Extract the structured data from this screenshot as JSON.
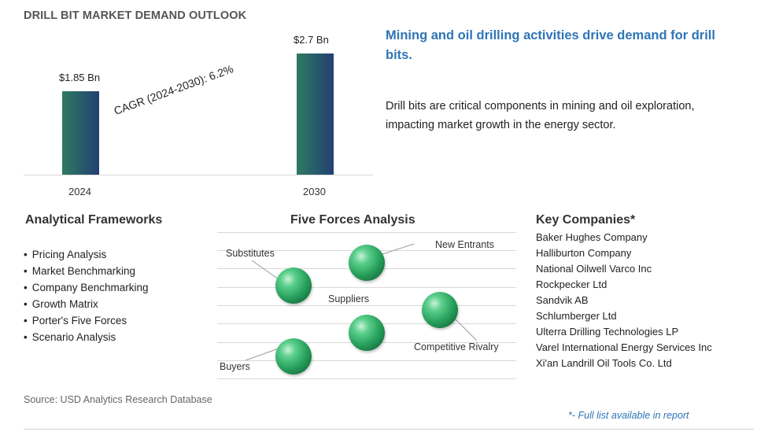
{
  "title": "DRILL BIT MARKET DEMAND OUTLOOK",
  "chart_data": {
    "type": "bar",
    "categories": [
      "2024",
      "2030"
    ],
    "values": [
      1.85,
      2.7
    ],
    "value_labels": [
      "$1.85 Bn",
      "$2.7 Bn"
    ],
    "ylim": [
      0,
      2.7
    ],
    "annotation": "CAGR (2024-2030):  6.2%",
    "grid": false
  },
  "headline": "Mining and oil drilling activities drive demand for drill bits.",
  "description": "Drill bits are critical components in mining and oil exploration, impacting market growth in the energy sector.",
  "analytical_frameworks": {
    "title": "Analytical Frameworks",
    "items": [
      "Pricing Analysis",
      "Market Benchmarking",
      "Company Benchmarking",
      "Growth Matrix",
      "Porter's Five Forces",
      "Scenario Analysis"
    ]
  },
  "five_forces": {
    "title": "Five Forces Analysis",
    "labels": {
      "substitutes": "Substitutes",
      "new_entrants": "New Entrants",
      "suppliers": "Suppliers",
      "competitive_rivalry": "Competitive Rivalry",
      "buyers": "Buyers"
    },
    "colors": {
      "sphere": "#27a05c",
      "lines": "#d9d9d9"
    }
  },
  "key_companies": {
    "title": "Key Companies*",
    "items": [
      "Baker Hughes Company",
      "Halliburton Company",
      "National Oilwell Varco Inc",
      "Rockpecker Ltd",
      "Sandvik AB",
      "Schlumberger Ltd",
      "Ulterra Drilling Technologies LP",
      "Varel International Energy Services Inc",
      "Xi'an Landrill Oil Tools Co. Ltd"
    ]
  },
  "source": "Source: USD Analytics Research Database",
  "footnote": "*- Full list available in report",
  "colors": {
    "accent": "#2e75b6",
    "bar_start": "#2f7a63",
    "bar_end": "#233f72"
  }
}
